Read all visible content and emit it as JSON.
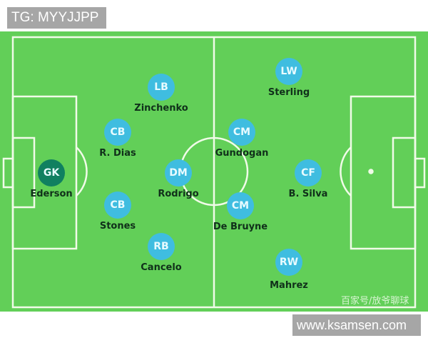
{
  "watermark_top": "TG: MYYJJPP",
  "watermark_bottom": "www.ksamsen.com",
  "watermark_pitch": "百家号/放爷聊球",
  "colors": {
    "pitch": "#62cf58",
    "player": "#3fbde0",
    "goalkeeper": "#108060"
  },
  "players": [
    {
      "pos": "GK",
      "name": "Ederson"
    },
    {
      "pos": "LB",
      "name": "Zinchenko"
    },
    {
      "pos": "CB",
      "name": "R. Dias"
    },
    {
      "pos": "CB",
      "name": "Stones"
    },
    {
      "pos": "RB",
      "name": "Cancelo"
    },
    {
      "pos": "DM",
      "name": "Rodrigo"
    },
    {
      "pos": "CM",
      "name": "Gundogan"
    },
    {
      "pos": "CM",
      "name": "De Bruyne"
    },
    {
      "pos": "LW",
      "name": "Sterling"
    },
    {
      "pos": "CF",
      "name": "B. Silva"
    },
    {
      "pos": "RW",
      "name": "Mahrez"
    }
  ]
}
